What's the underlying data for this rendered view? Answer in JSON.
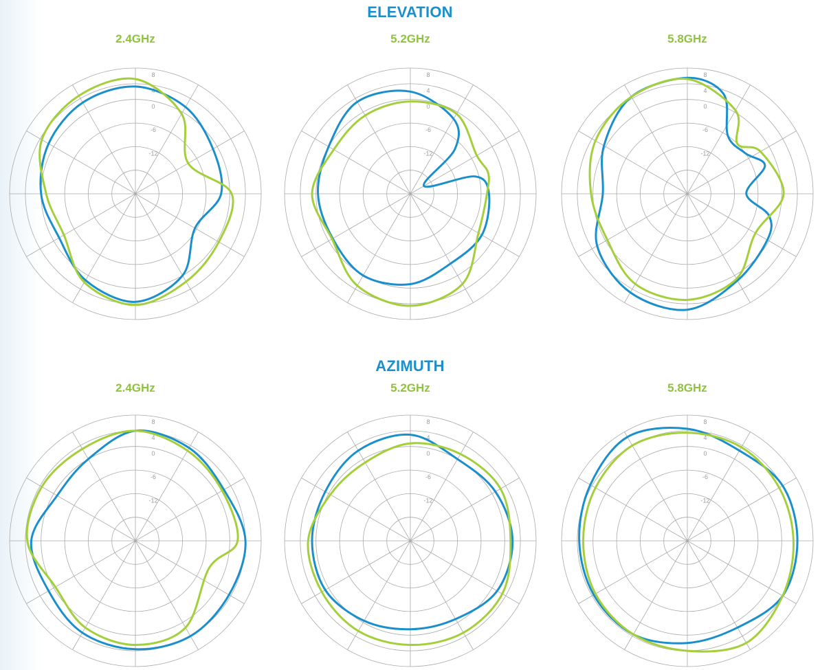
{
  "colors": {
    "title": "#1b8fcb",
    "freq": "#8fc23f",
    "series_blue": "#1b8fcb",
    "series_green": "#a4cf3b",
    "grid": "#a9a9a9"
  },
  "sections": [
    {
      "title": "ELEVATION",
      "freqs": [
        "2.4GHz",
        "5.2GHz",
        "5.8GHz"
      ]
    },
    {
      "title": "AZIMUTH",
      "freqs": [
        "2.4GHz",
        "5.2GHz",
        "5.8GHz"
      ]
    }
  ],
  "chart_data": [
    {
      "type": "polar",
      "group": "ELEVATION",
      "title": "2.4GHz",
      "r_ticks": [
        "8",
        "4",
        "0",
        "-6",
        "-12"
      ],
      "r_tick_values": [
        8,
        4,
        0,
        -6,
        -12
      ],
      "rlim": [
        -24,
        8
      ],
      "angle_step_deg": 30,
      "grid": true,
      "series": [
        {
          "color": "#1b8fcb",
          "points": [
            [
              0,
              3.3
            ],
            [
              30,
              1.5
            ],
            [
              60,
              -1.2
            ],
            [
              90,
              -2.2
            ],
            [
              120,
              -6.5
            ],
            [
              150,
              0
            ],
            [
              180,
              3.5
            ],
            [
              210,
              1.4
            ],
            [
              240,
              -1.6
            ],
            [
              270,
              0
            ],
            [
              300,
              1.5
            ],
            [
              330,
              2.8
            ]
          ]
        },
        {
          "color": "#a4cf3b",
          "points": [
            [
              0,
              5.2
            ],
            [
              30,
              -0.5
            ],
            [
              60,
              -8.5
            ],
            [
              90,
              0.5
            ],
            [
              120,
              0.5
            ],
            [
              150,
              1.8
            ],
            [
              180,
              4.3
            ],
            [
              210,
              2
            ],
            [
              240,
              -3
            ],
            [
              270,
              -1.3
            ],
            [
              300,
              3.5
            ],
            [
              330,
              4.8
            ]
          ]
        }
      ]
    },
    {
      "type": "polar",
      "group": "ELEVATION",
      "title": "5.2GHz",
      "r_ticks": [
        "8",
        "4",
        "0",
        "-6",
        "-12"
      ],
      "r_tick_values": [
        8,
        4,
        0,
        -6,
        -12
      ],
      "rlim": [
        -24,
        8
      ],
      "angle_step_deg": 30,
      "grid": true,
      "series": [
        {
          "color": "#1b8fcb",
          "points": [
            [
              0,
              2
            ],
            [
              30,
              -2
            ],
            [
              45,
              -8
            ],
            [
              60,
              -20
            ],
            [
              75,
              -7
            ],
            [
              90,
              -4
            ],
            [
              120,
              -3
            ],
            [
              150,
              -3.5
            ],
            [
              180,
              -1
            ],
            [
              210,
              0
            ],
            [
              240,
              -1.2
            ],
            [
              270,
              -0.5
            ],
            [
              300,
              0
            ],
            [
              330,
              3
            ]
          ]
        },
        {
          "color": "#a4cf3b",
          "points": [
            [
              0,
              -0.5
            ],
            [
              30,
              -0.5
            ],
            [
              60,
              -4.5
            ],
            [
              75,
              -3.5
            ],
            [
              90,
              -4.5
            ],
            [
              120,
              -4
            ],
            [
              150,
              2.5
            ],
            [
              180,
              4.5
            ],
            [
              210,
              3
            ],
            [
              240,
              -1
            ],
            [
              270,
              1
            ],
            [
              300,
              -1.5
            ],
            [
              330,
              -1
            ]
          ]
        }
      ]
    },
    {
      "type": "polar",
      "group": "ELEVATION",
      "title": "5.8GHz",
      "r_ticks": [
        "8",
        "4",
        "0",
        "-6",
        "-12"
      ],
      "r_tick_values": [
        8,
        4,
        0,
        -6,
        -12
      ],
      "rlim": [
        -24,
        8
      ],
      "angle_step_deg": 30,
      "grid": true,
      "series": [
        {
          "color": "#1b8fcb",
          "points": [
            [
              0,
              5.5
            ],
            [
              20,
              3
            ],
            [
              35,
              -6
            ],
            [
              55,
              -6
            ],
            [
              70,
              -3
            ],
            [
              90,
              -9
            ],
            [
              105,
              -2.5
            ],
            [
              120,
              -0.5
            ],
            [
              150,
              1.5
            ],
            [
              180,
              5.5
            ],
            [
              210,
              5
            ],
            [
              240,
              2.5
            ],
            [
              270,
              -2.5
            ],
            [
              300,
              0.5
            ],
            [
              330,
              4.5
            ]
          ]
        },
        {
          "color": "#a4cf3b",
          "points": [
            [
              0,
              5.2
            ],
            [
              30,
              0.5
            ],
            [
              45,
              -6
            ],
            [
              60,
              -2.5
            ],
            [
              90,
              0.5
            ],
            [
              120,
              -4
            ],
            [
              150,
              1
            ],
            [
              180,
              3
            ],
            [
              210,
              2.5
            ],
            [
              240,
              -0.5
            ],
            [
              270,
              0.5
            ],
            [
              300,
              3
            ],
            [
              330,
              4.5
            ]
          ]
        }
      ]
    },
    {
      "type": "polar",
      "group": "AZIMUTH",
      "title": "2.4GHz",
      "r_ticks": [
        "8",
        "4",
        "0",
        "-6",
        "-12"
      ],
      "r_tick_values": [
        8,
        4,
        0,
        -6,
        -12
      ],
      "rlim": [
        -24,
        8
      ],
      "angle_step_deg": 30,
      "grid": true,
      "series": [
        {
          "color": "#1b8fcb",
          "points": [
            [
              0,
              4
            ],
            [
              30,
              3.3
            ],
            [
              60,
              2
            ],
            [
              90,
              4
            ],
            [
              120,
              3.5
            ],
            [
              150,
              4
            ],
            [
              180,
              3.6
            ],
            [
              210,
              3
            ],
            [
              240,
              1.5
            ],
            [
              270,
              2.5
            ],
            [
              300,
              -1
            ],
            [
              330,
              0
            ]
          ]
        },
        {
          "color": "#a4cf3b",
          "points": [
            [
              0,
              4
            ],
            [
              30,
              2.5
            ],
            [
              60,
              1.5
            ],
            [
              90,
              2
            ],
            [
              110,
              -4
            ],
            [
              150,
              1.5
            ],
            [
              180,
              2.5
            ],
            [
              210,
              1.5
            ],
            [
              240,
              -0.5
            ],
            [
              270,
              3.5
            ],
            [
              300,
              3.5
            ],
            [
              330,
              3
            ]
          ]
        }
      ]
    },
    {
      "type": "polar",
      "group": "AZIMUTH",
      "title": "5.2GHz",
      "r_ticks": [
        "8",
        "4",
        "0",
        "-6",
        "-12"
      ],
      "r_tick_values": [
        8,
        4,
        0,
        -6,
        -12
      ],
      "rlim": [
        -24,
        8
      ],
      "angle_step_deg": 30,
      "grid": true,
      "series": [
        {
          "color": "#1b8fcb",
          "points": [
            [
              0,
              3
            ],
            [
              30,
              0
            ],
            [
              60,
              1
            ],
            [
              90,
              2
            ],
            [
              120,
              1.5
            ],
            [
              150,
              -1
            ],
            [
              180,
              -1.5
            ],
            [
              210,
              -0.5
            ],
            [
              240,
              1
            ],
            [
              270,
              1
            ],
            [
              300,
              1
            ],
            [
              330,
              2.5
            ]
          ]
        },
        {
          "color": "#a4cf3b",
          "points": [
            [
              0,
              0.8
            ],
            [
              30,
              1.5
            ],
            [
              60,
              2.5
            ],
            [
              90,
              1.5
            ],
            [
              120,
              3
            ],
            [
              150,
              3
            ],
            [
              180,
              2.5
            ],
            [
              210,
              2.5
            ],
            [
              240,
              2
            ],
            [
              270,
              2
            ],
            [
              300,
              -0.5
            ],
            [
              330,
              -1
            ]
          ]
        }
      ]
    },
    {
      "type": "polar",
      "group": "AZIMUTH",
      "title": "5.8GHz",
      "r_ticks": [
        "8",
        "4",
        "0",
        "-6",
        "-12"
      ],
      "r_tick_values": [
        8,
        4,
        0,
        -6,
        -12
      ],
      "rlim": [
        -24,
        8
      ],
      "angle_step_deg": 30,
      "grid": true,
      "series": [
        {
          "color": "#1b8fcb",
          "points": [
            [
              0,
              4.5
            ],
            [
              30,
              2.5
            ],
            [
              60,
              4
            ],
            [
              90,
              4
            ],
            [
              120,
              4
            ],
            [
              150,
              1.5
            ],
            [
              180,
              2
            ],
            [
              210,
              3.5
            ],
            [
              240,
              3.5
            ],
            [
              270,
              3.5
            ],
            [
              300,
              4.5
            ],
            [
              330,
              6.5
            ]
          ]
        },
        {
          "color": "#a4cf3b",
          "points": [
            [
              0,
              3.5
            ],
            [
              30,
              3.5
            ],
            [
              60,
              3
            ],
            [
              90,
              3
            ],
            [
              120,
              4
            ],
            [
              150,
              6
            ],
            [
              180,
              4
            ],
            [
              210,
              3.5
            ],
            [
              240,
              3
            ],
            [
              270,
              2.5
            ],
            [
              300,
              3
            ],
            [
              330,
              4
            ]
          ]
        }
      ]
    }
  ]
}
